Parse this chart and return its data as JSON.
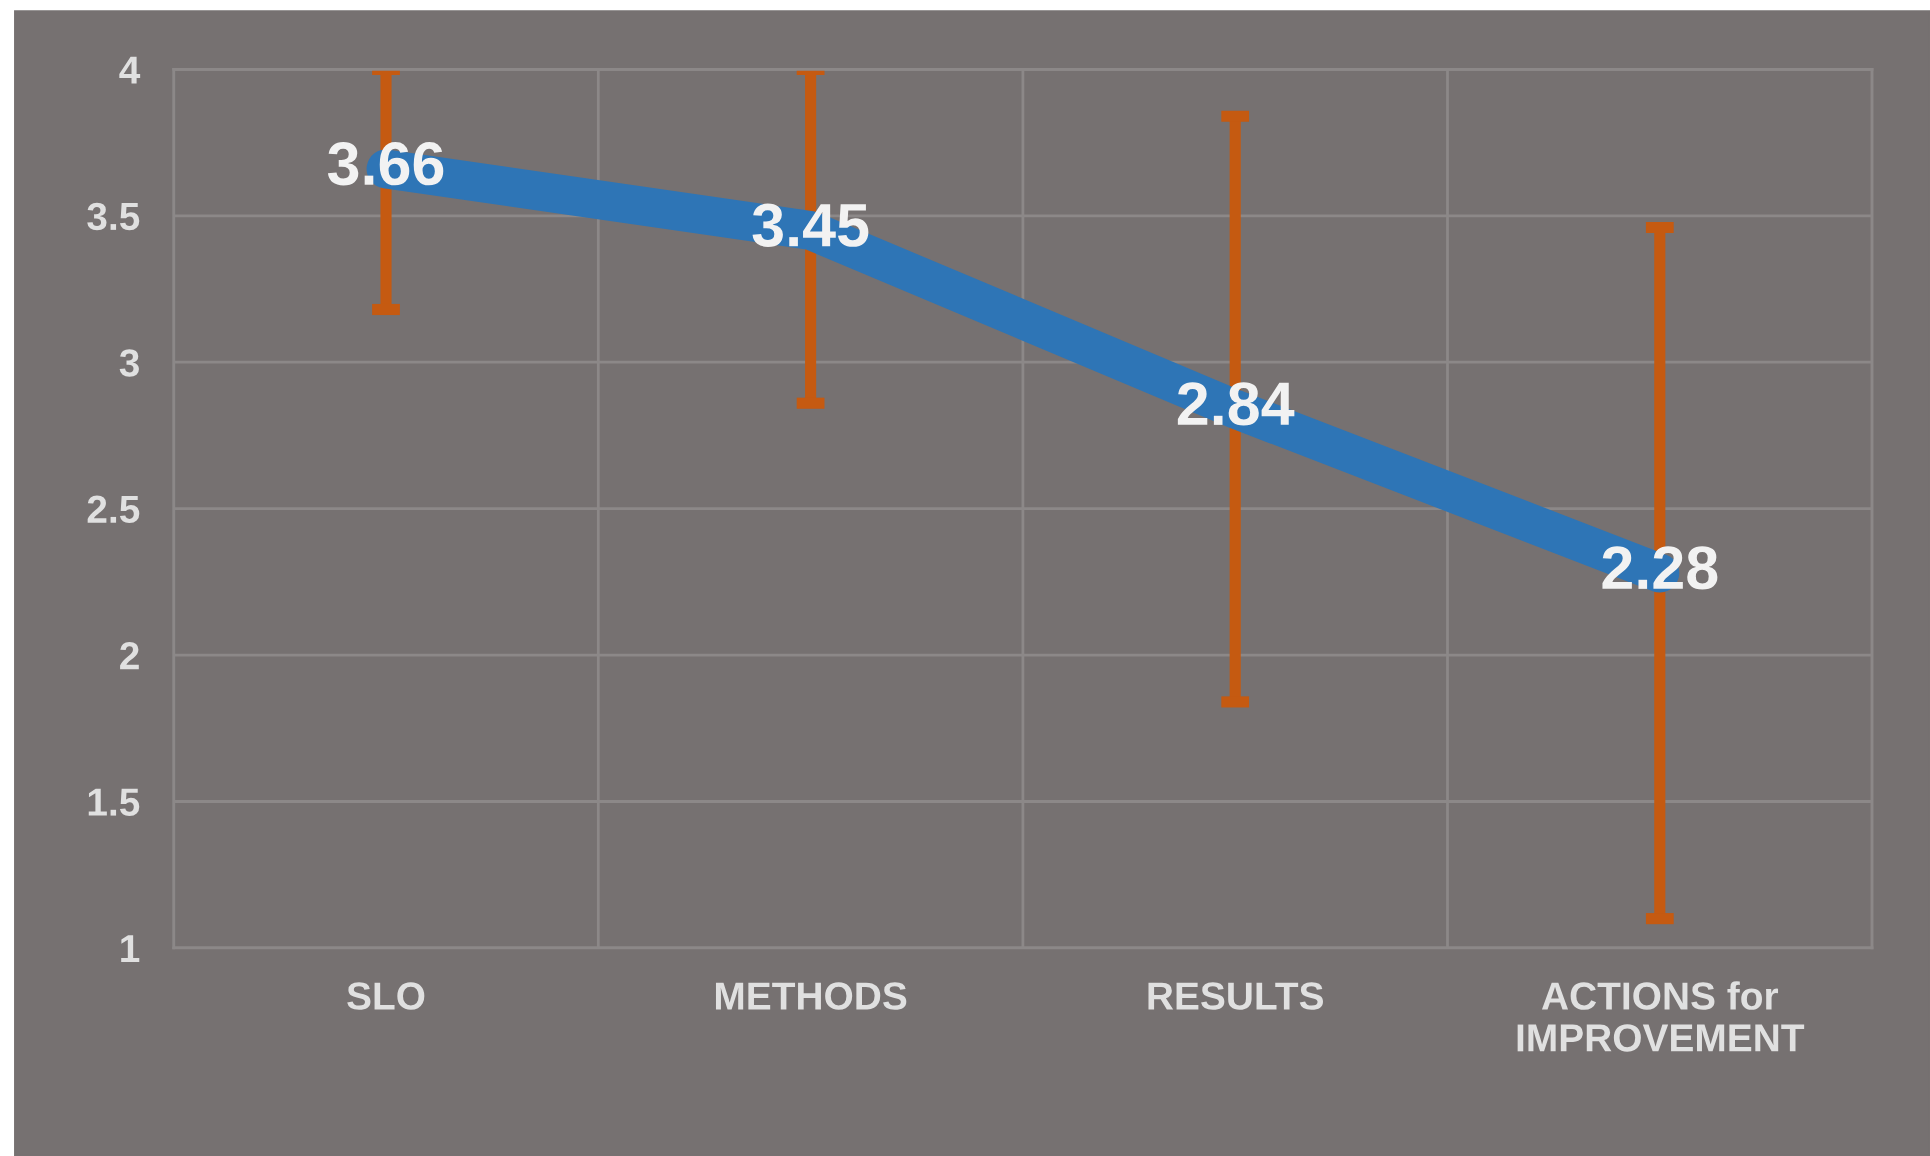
{
  "chart_data": {
    "type": "line",
    "categories": [
      "SLO",
      "METHODS",
      "RESULTS",
      "ACTIONS for\nIMPROVEMENT"
    ],
    "series": [
      {
        "color": "#2e75b6",
        "values": [
          3.66,
          3.45,
          2.84,
          2.28
        ],
        "errors": [
          [
            3.18,
            4
          ],
          [
            2.86,
            4
          ],
          1.0,
          1.18
        ]
      }
    ],
    "ylim": [
      1,
      4
    ],
    "yticks": [
      1,
      1.5,
      2,
      2.5,
      3,
      3.5,
      4
    ],
    "grid": true,
    "data_labels": true,
    "line_style": "solid"
  }
}
